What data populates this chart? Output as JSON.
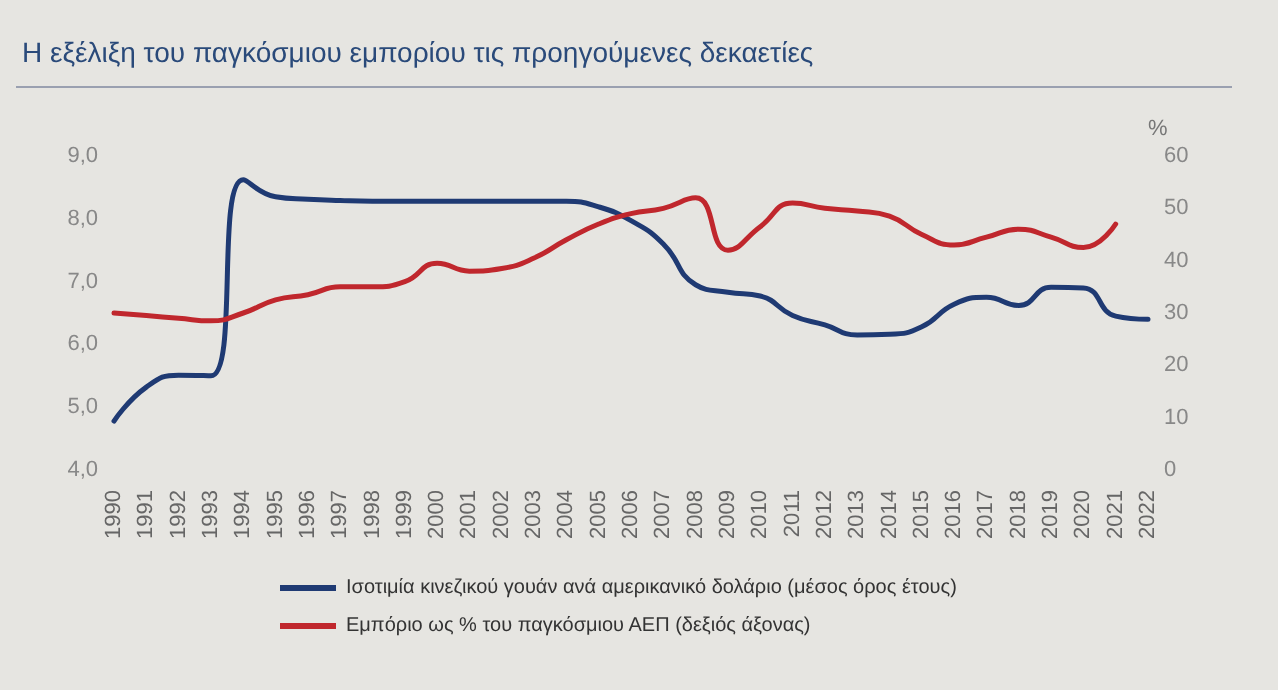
{
  "chart_data": {
    "type": "line",
    "title": "Η εξέλιξη του παγκόσμιου εμπορίου τις προηγούμενες δεκαετίες",
    "y2label": "%",
    "categories": [
      "1990",
      "1991",
      "1992",
      "1993",
      "1994",
      "1995",
      "1996",
      "1997",
      "1998",
      "1999",
      "2000",
      "2001",
      "2002",
      "2003",
      "2004",
      "2005",
      "2006",
      "2007",
      "2008",
      "2009",
      "2010",
      "2011",
      "2012",
      "2013",
      "2014",
      "2015",
      "2016",
      "2017",
      "2018",
      "2019",
      "2020",
      "2021",
      "2022"
    ],
    "series": [
      {
        "name": "Ισοτιμία κινεζικού γουάν ανά αμερικανικό δολάριο (μέσος όρος έτους)",
        "color": "#1f3a73",
        "values": [
          4.78,
          5.32,
          5.51,
          5.5,
          8.62,
          8.35,
          8.31,
          8.29,
          8.28,
          8.28,
          8.28,
          8.28,
          8.28,
          8.28,
          8.28,
          8.19,
          7.97,
          7.6,
          6.95,
          6.83,
          6.77,
          6.46,
          6.31,
          6.15,
          6.16,
          6.28,
          6.64,
          6.75,
          6.62,
          6.91,
          6.9,
          6.45,
          6.4
        ]
      },
      {
        "name": "Εμπόριο ως % του παγκόσμιου ΑΕΠ (δεξιός άξονας)",
        "color": "#c0272d",
        "axis": "y2",
        "values": [
          30,
          29.5,
          29,
          28.5,
          30,
          32.5,
          33.5,
          35,
          35,
          36,
          39.5,
          38,
          38.5,
          40.5,
          44,
          47,
          49,
          50,
          52,
          42,
          46.5,
          51,
          50,
          49.5,
          48.5,
          45,
          43,
          44.5,
          46,
          44.5,
          42.5,
          47,
          null
        ]
      }
    ],
    "ylim": [
      4,
      9
    ],
    "yticks": [
      {
        "value": 4,
        "label": "4,0"
      },
      {
        "value": 5,
        "label": "5,0"
      },
      {
        "value": 6,
        "label": "6,0"
      },
      {
        "value": 7,
        "label": "7,0"
      },
      {
        "value": 8,
        "label": "8,0"
      },
      {
        "value": 9,
        "label": "9,0"
      }
    ],
    "y2lim": [
      0,
      60
    ],
    "y2ticks": [
      0,
      10,
      20,
      30,
      40,
      50,
      60
    ],
    "grid": false,
    "legend": "bottom",
    "marker": "none",
    "line_style": "solid"
  }
}
